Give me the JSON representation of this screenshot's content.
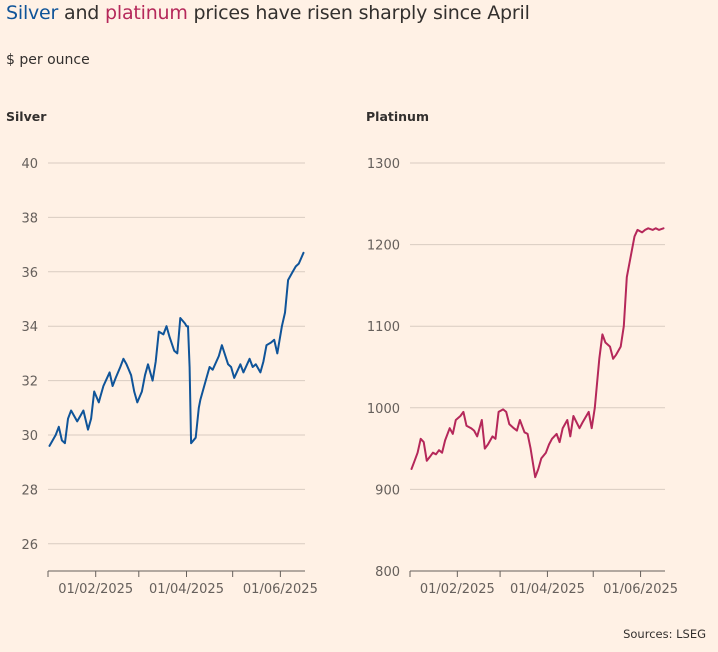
{
  "title": {
    "silver_word": "Silver",
    "and_word": " and ",
    "platinum_word": "platinum",
    "rest": " prices have risen sharply since April"
  },
  "subtitle": "$ per ounce",
  "source": "Sources: LSEG",
  "colors": {
    "silver": "#0F5499",
    "platinum": "#B5285A",
    "background": "#FFF1E5",
    "grid": "#D9CCC1"
  },
  "chart_data": [
    {
      "type": "line",
      "title": "Silver",
      "ylabel": "$ per ounce",
      "ylim": [
        25,
        40
      ],
      "yticks": [
        26,
        28,
        30,
        32,
        34,
        36,
        38,
        40
      ],
      "xlim": [
        "2025-01-01",
        "2025-06-17"
      ],
      "xticks": [
        {
          "date": "2025-02-01",
          "label": "01/02/2025"
        },
        {
          "date": "2025-04-01",
          "label": "01/04/2025"
        },
        {
          "date": "2025-06-01",
          "label": "01/06/2025"
        }
      ],
      "x_minor_ticks": [
        "2025-01-01",
        "2025-03-01",
        "2025-05-01"
      ],
      "series": [
        {
          "name": "Silver",
          "x": [
            "2025-01-02",
            "2025-01-06",
            "2025-01-08",
            "2025-01-10",
            "2025-01-12",
            "2025-01-14",
            "2025-01-16",
            "2025-01-20",
            "2025-01-22",
            "2025-01-24",
            "2025-01-27",
            "2025-01-29",
            "2025-01-31",
            "2025-02-03",
            "2025-02-04",
            "2025-02-06",
            "2025-02-10",
            "2025-02-12",
            "2025-02-14",
            "2025-02-17",
            "2025-02-19",
            "2025-02-21",
            "2025-02-24",
            "2025-02-26",
            "2025-02-28",
            "2025-03-03",
            "2025-03-05",
            "2025-03-07",
            "2025-03-10",
            "2025-03-12",
            "2025-03-14",
            "2025-03-17",
            "2025-03-19",
            "2025-03-21",
            "2025-03-24",
            "2025-03-26",
            "2025-03-28",
            "2025-03-31",
            "2025-04-01",
            "2025-04-02",
            "2025-04-03",
            "2025-04-04",
            "2025-04-07",
            "2025-04-09",
            "2025-04-10",
            "2025-04-14",
            "2025-04-16",
            "2025-04-18",
            "2025-04-22",
            "2025-04-24",
            "2025-04-28",
            "2025-04-30",
            "2025-05-02",
            "2025-05-06",
            "2025-05-08",
            "2025-05-12",
            "2025-05-14",
            "2025-05-16",
            "2025-05-19",
            "2025-05-21",
            "2025-05-23",
            "2025-05-26",
            "2025-05-28",
            "2025-05-30",
            "2025-06-02",
            "2025-06-04",
            "2025-06-06",
            "2025-06-09",
            "2025-06-11",
            "2025-06-13",
            "2025-06-16"
          ],
          "values": [
            29.6,
            30.0,
            30.3,
            29.8,
            29.7,
            30.6,
            30.9,
            30.5,
            30.7,
            30.9,
            30.2,
            30.6,
            31.6,
            31.2,
            31.4,
            31.8,
            32.3,
            31.8,
            32.1,
            32.5,
            32.8,
            32.6,
            32.2,
            31.6,
            31.2,
            31.6,
            32.2,
            32.6,
            32.0,
            32.7,
            33.8,
            33.7,
            34.0,
            33.6,
            33.1,
            33.0,
            34.3,
            34.1,
            34.0,
            34.0,
            32.5,
            29.7,
            29.9,
            31.0,
            31.3,
            32.1,
            32.5,
            32.4,
            32.9,
            33.3,
            32.6,
            32.5,
            32.1,
            32.6,
            32.3,
            32.8,
            32.5,
            32.6,
            32.3,
            32.7,
            33.3,
            33.4,
            33.5,
            33.0,
            34.0,
            34.5,
            35.7,
            36.0,
            36.2,
            36.3,
            36.7
          ]
        }
      ]
    },
    {
      "type": "line",
      "title": "Platinum",
      "ylabel": "$ per ounce",
      "ylim": [
        800,
        1300
      ],
      "yticks": [
        800,
        900,
        1000,
        1100,
        1200,
        1300
      ],
      "xlim": [
        "2025-01-01",
        "2025-06-17"
      ],
      "xticks": [
        {
          "date": "2025-02-01",
          "label": "01/02/2025"
        },
        {
          "date": "2025-04-01",
          "label": "01/04/2025"
        },
        {
          "date": "2025-06-01",
          "label": "01/06/2025"
        }
      ],
      "x_minor_ticks": [
        "2025-01-01",
        "2025-03-01",
        "2025-05-01"
      ],
      "series": [
        {
          "name": "Platinum",
          "x": [
            "2025-01-02",
            "2025-01-04",
            "2025-01-06",
            "2025-01-08",
            "2025-01-10",
            "2025-01-12",
            "2025-01-14",
            "2025-01-16",
            "2025-01-18",
            "2025-01-20",
            "2025-01-22",
            "2025-01-24",
            "2025-01-27",
            "2025-01-29",
            "2025-01-31",
            "2025-02-03",
            "2025-02-05",
            "2025-02-07",
            "2025-02-10",
            "2025-02-12",
            "2025-02-14",
            "2025-02-17",
            "2025-02-19",
            "2025-02-21",
            "2025-02-24",
            "2025-02-26",
            "2025-02-28",
            "2025-03-03",
            "2025-03-05",
            "2025-03-07",
            "2025-03-10",
            "2025-03-12",
            "2025-03-14",
            "2025-03-17",
            "2025-03-19",
            "2025-03-21",
            "2025-03-24",
            "2025-03-26",
            "2025-03-28",
            "2025-03-31",
            "2025-04-02",
            "2025-04-04",
            "2025-04-07",
            "2025-04-09",
            "2025-04-11",
            "2025-04-14",
            "2025-04-16",
            "2025-04-18",
            "2025-04-22",
            "2025-04-24",
            "2025-04-28",
            "2025-04-30",
            "2025-05-02",
            "2025-05-05",
            "2025-05-07",
            "2025-05-09",
            "2025-05-12",
            "2025-05-14",
            "2025-05-16",
            "2025-05-19",
            "2025-05-21",
            "2025-05-23",
            "2025-05-26",
            "2025-05-28",
            "2025-05-30",
            "2025-06-02",
            "2025-06-04",
            "2025-06-06",
            "2025-06-09",
            "2025-06-11",
            "2025-06-13",
            "2025-06-16"
          ],
          "values": [
            925,
            935,
            945,
            962,
            958,
            935,
            940,
            945,
            943,
            948,
            945,
            960,
            975,
            968,
            985,
            990,
            995,
            978,
            975,
            972,
            965,
            985,
            950,
            955,
            965,
            962,
            995,
            998,
            995,
            980,
            975,
            972,
            985,
            970,
            968,
            950,
            915,
            925,
            938,
            945,
            955,
            962,
            968,
            958,
            975,
            985,
            965,
            990,
            975,
            982,
            995,
            975,
            1000,
            1060,
            1090,
            1080,
            1075,
            1060,
            1065,
            1075,
            1100,
            1160,
            1190,
            1210,
            1218,
            1215,
            1218,
            1220,
            1218,
            1220,
            1218,
            1220
          ]
        }
      ]
    }
  ]
}
